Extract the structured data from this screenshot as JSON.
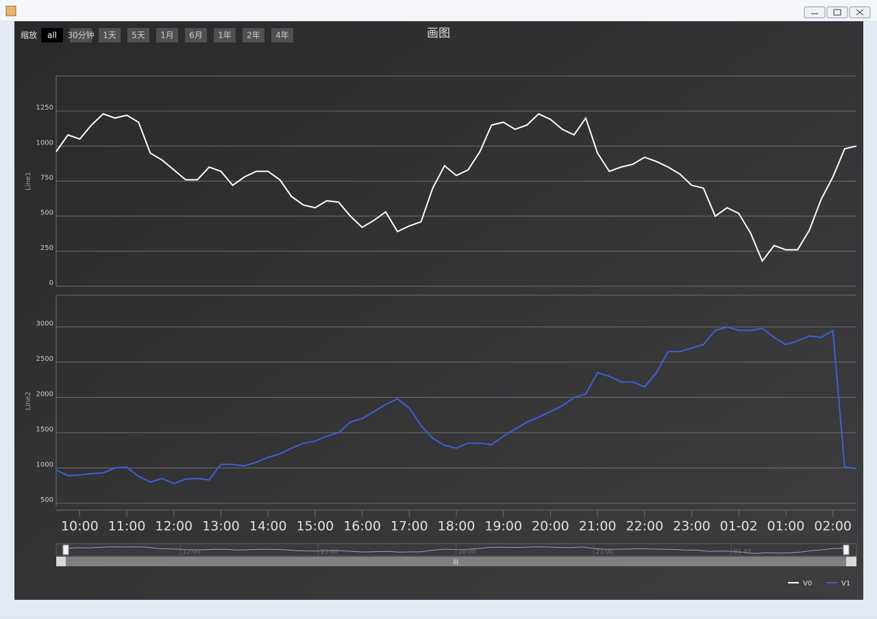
{
  "range_selector": {
    "label": "缩放",
    "buttons": [
      "all",
      "30分钟",
      "1天",
      "5天",
      "1月",
      "6月",
      "1年",
      "2年",
      "4年"
    ],
    "selected": 0
  },
  "chart_data": {
    "type": "line",
    "title": "画图",
    "ylabel": "Line1",
    "y2label": "Line2",
    "x": [
      "09:30",
      "09:45",
      "10:00",
      "10:15",
      "10:30",
      "10:45",
      "11:00",
      "11:15",
      "11:30",
      "11:45",
      "12:00",
      "12:15",
      "12:30",
      "12:45",
      "13:00",
      "13:15",
      "13:30",
      "13:45",
      "14:00",
      "14:15",
      "14:30",
      "14:45",
      "15:00",
      "15:15",
      "15:30",
      "15:45",
      "16:00",
      "16:15",
      "16:30",
      "16:45",
      "17:00",
      "17:15",
      "17:30",
      "17:45",
      "18:00",
      "18:15",
      "18:30",
      "18:45",
      "19:00",
      "19:15",
      "19:30",
      "19:45",
      "20:00",
      "20:15",
      "20:30",
      "20:45",
      "21:00",
      "21:15",
      "21:30",
      "21:45",
      "22:00",
      "22:15",
      "22:30",
      "22:45",
      "23:00",
      "23:15",
      "23:30",
      "23:45",
      "00:00",
      "00:15",
      "00:30",
      "00:45",
      "01:00",
      "01:15",
      "01:30",
      "01:45",
      "02:00",
      "02:15",
      "02:30"
    ],
    "series": [
      {
        "name": "V0",
        "color": "#ffffff",
        "axis": "y",
        "values": [
          960,
          1080,
          1050,
          1150,
          1230,
          1200,
          1220,
          1170,
          950,
          900,
          830,
          760,
          760,
          850,
          820,
          720,
          780,
          820,
          820,
          760,
          640,
          580,
          560,
          610,
          600,
          500,
          420,
          470,
          530,
          390,
          430,
          460,
          700,
          860,
          790,
          830,
          960,
          1150,
          1170,
          1120,
          1150,
          1230,
          1190,
          1120,
          1080,
          1200,
          950,
          820,
          850,
          870,
          920,
          890,
          850,
          800,
          720,
          700,
          500,
          560,
          520,
          380,
          180,
          290,
          260,
          260,
          400,
          620,
          780,
          980,
          1000
        ]
      },
      {
        "name": "V1",
        "color": "#3d5fd9",
        "axis": "y2",
        "values": [
          970,
          890,
          900,
          920,
          930,
          1000,
          1010,
          880,
          800,
          850,
          780,
          840,
          850,
          830,
          1050,
          1050,
          1030,
          1080,
          1150,
          1200,
          1280,
          1350,
          1380,
          1450,
          1500,
          1650,
          1700,
          1800,
          1900,
          1980,
          1850,
          1600,
          1420,
          1320,
          1280,
          1350,
          1350,
          1330,
          1450,
          1550,
          1650,
          1720,
          1800,
          1880,
          2000,
          2050,
          2350,
          2300,
          2220,
          2220,
          2150,
          2350,
          2650,
          2650,
          2700,
          2750,
          2950,
          3000,
          2950,
          2950,
          2980,
          2850,
          2750,
          2800,
          2870,
          2850,
          2950,
          1010,
          990
        ]
      }
    ],
    "ylim": [
      0,
      1500
    ],
    "yticks": [
      0,
      250,
      500,
      750,
      1000,
      1250
    ],
    "y2lim": [
      450,
      3450
    ],
    "y2ticks": [
      500,
      1000,
      1500,
      2000,
      2500,
      3000
    ],
    "xticks": [
      "10:00",
      "11:00",
      "12:00",
      "13:00",
      "14:00",
      "15:00",
      "16:00",
      "17:00",
      "18:00",
      "19:00",
      "20:00",
      "21:00",
      "22:00",
      "23:00",
      {
        "value": "00:00",
        "label": "01-02"
      },
      "01:00",
      "02:00"
    ],
    "navigator": {
      "xticks": [
        "12:00",
        "15:00",
        "18:00",
        "21:00",
        {
          "value": "00:00",
          "label": "01-02"
        }
      ]
    },
    "grid": true,
    "legend": "bottom-right"
  }
}
